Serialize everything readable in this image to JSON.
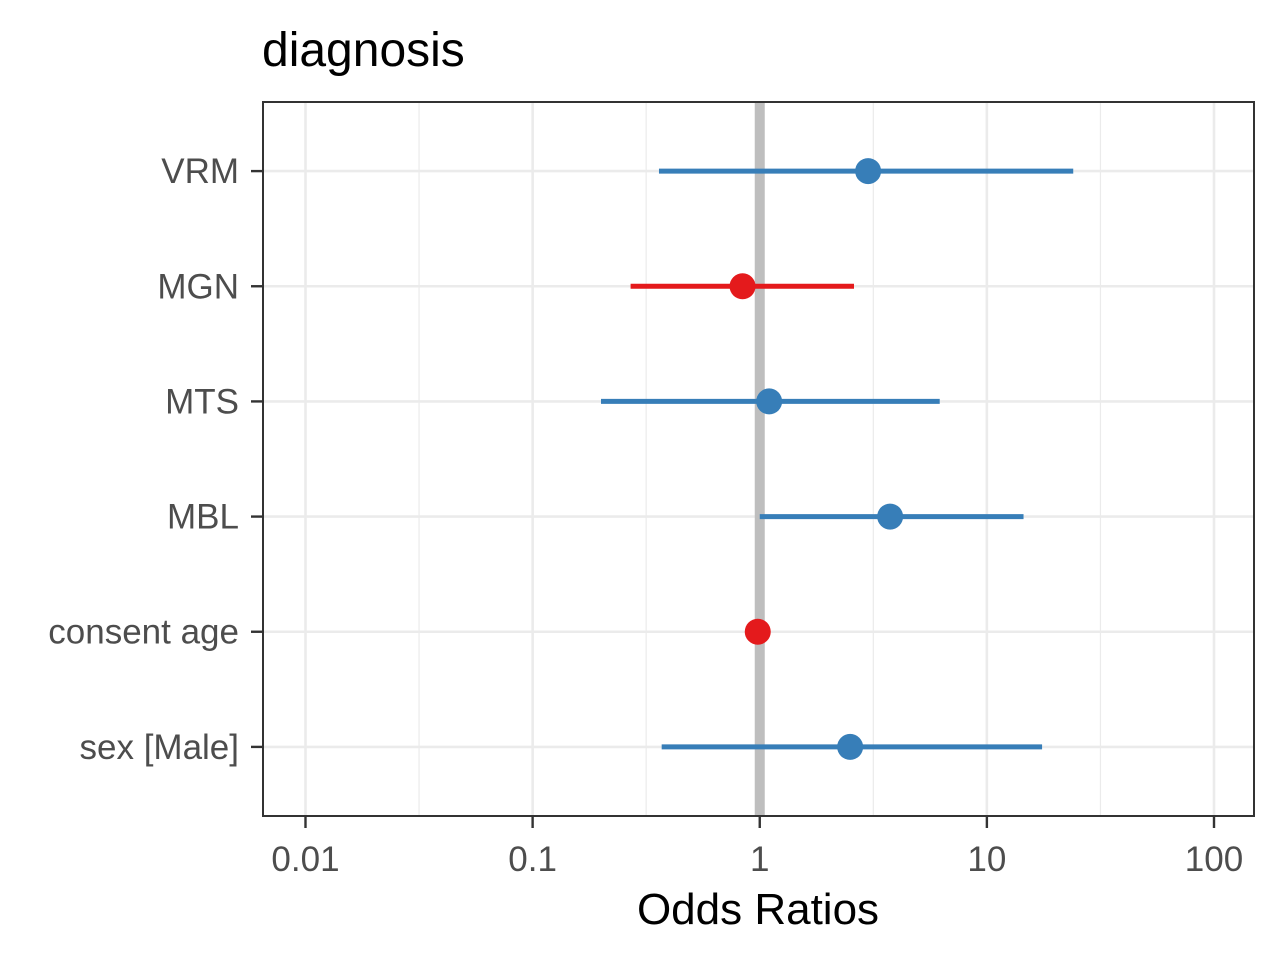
{
  "chart_data": {
    "type": "forest",
    "title": "diagnosis",
    "xlabel": "Odds Ratios",
    "ylabel": "",
    "x_scale": "log10",
    "xlim": [
      0.0065,
      150
    ],
    "x_ticks": [
      0.01,
      0.1,
      1,
      10,
      100
    ],
    "x_tick_labels": [
      "0.01",
      "0.1",
      "1",
      "10",
      "100"
    ],
    "reference_line": 1,
    "grid": true,
    "colors": {
      "positive": "#377EB8",
      "negative": "#E41A1C",
      "reference": "#BEBEBE",
      "grid": "#EBEBEB",
      "border": "#333333"
    },
    "terms": [
      {
        "label": "VRM",
        "estimate": 3.0,
        "conf_low": 0.36,
        "conf_high": 24.0
      },
      {
        "label": "MGN",
        "estimate": 0.84,
        "conf_low": 0.27,
        "conf_high": 2.6
      },
      {
        "label": "MTS",
        "estimate": 1.1,
        "conf_low": 0.2,
        "conf_high": 6.2
      },
      {
        "label": "MBL",
        "estimate": 3.75,
        "conf_low": 1.0,
        "conf_high": 14.5
      },
      {
        "label": "consent age",
        "estimate": 0.98,
        "conf_low": 0.97,
        "conf_high": 1.0
      },
      {
        "label": "sex [Male]",
        "estimate": 2.5,
        "conf_low": 0.37,
        "conf_high": 17.5
      }
    ]
  }
}
